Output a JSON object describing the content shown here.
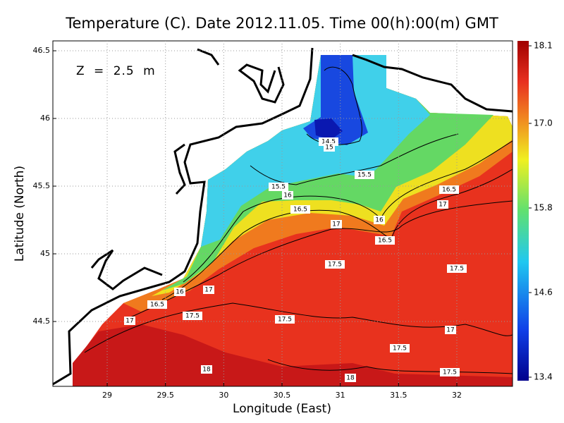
{
  "chart_data": {
    "type": "heatmap",
    "title": "Temperature (C). Date 2012.11.05. Time 00(h):00(m) GMT",
    "annotation": "Z = 2.5 m",
    "x_label": "Longitude (East)",
    "y_label": "Latitude (North)",
    "xlim": [
      28.534,
      32.478
    ],
    "ylim": [
      44.021,
      46.573
    ],
    "xticks": [
      29,
      29.5,
      30,
      30.5,
      31,
      31.5,
      32
    ],
    "yticks": [
      44.5,
      45,
      45.5,
      46,
      46.5
    ],
    "grid": true,
    "colorbar": {
      "lim": [
        13.35,
        18.17
      ],
      "ticks": [
        18.1,
        {
          "value": 17,
          "label": "17.0"
        },
        15.8,
        14.6,
        13.4
      ]
    },
    "contour_labels": [
      14.5,
      15,
      15.5,
      15.5,
      16,
      16.5,
      16,
      16.5,
      17,
      16.5,
      17,
      17.5,
      17.5,
      16,
      17,
      16.5,
      17.5,
      17,
      17.5,
      17,
      17.5,
      18,
      18,
      17.5
    ]
  }
}
